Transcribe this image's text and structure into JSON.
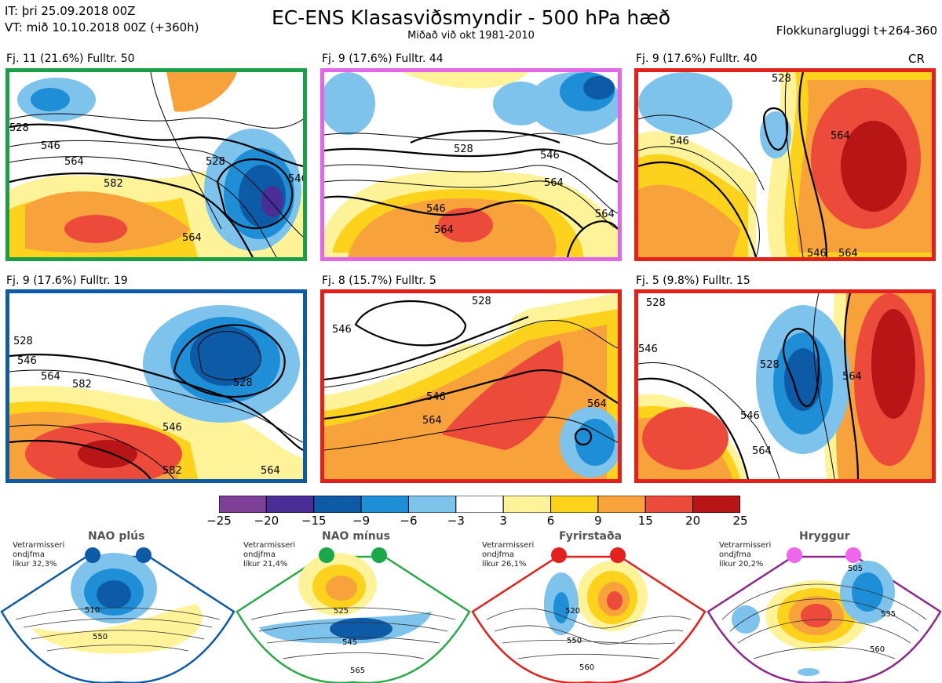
{
  "header": {
    "it_line": "IT: þri 25.09.2018 00Z",
    "vt_line": "VT: mið 10.10.2018 00Z  (+360h)",
    "title": "EC-ENS Klasasviðsmyndir - 500 hPa hæð",
    "subtitle": "Miðað við okt 1981-2010",
    "right": "Flokkunargluggi t+264-360"
  },
  "panels": [
    {
      "label": "Fj. 11 (21.6%)   Fulltr. 50",
      "border": "#1a9e48",
      "contours": [
        "528",
        "546",
        "564",
        "582",
        "528",
        "546",
        "564"
      ]
    },
    {
      "label": "Fj. 9 (17.6%)   Fulltr. 44",
      "border": "#e466e6",
      "contours": [
        "528",
        "546",
        "564",
        "564",
        "546",
        "564"
      ]
    },
    {
      "label": "Fj. 9 (17.6%)   Fulltr. 40",
      "border": "#e3201b",
      "contours": [
        "528",
        "546",
        "564",
        "546",
        "564"
      ],
      "tag": "CR"
    },
    {
      "label": "Fj. 9 (17.6%)   Fulltr. 19",
      "border": "#0d5ba6",
      "contours": [
        "528",
        "546",
        "564",
        "582",
        "528",
        "546",
        "564",
        "582"
      ]
    },
    {
      "label": "Fj. 8 (15.7%)   Fulltr. 5",
      "border": "#e3201b",
      "contours": [
        "528",
        "546",
        "546",
        "564",
        "564"
      ]
    },
    {
      "label": "Fj. 5 (9.8%)   Fulltr. 15",
      "border": "#e3201b",
      "contours": [
        "528",
        "546",
        "528",
        "546",
        "564",
        "564"
      ]
    }
  ],
  "colorbar": {
    "ticks": [
      "−25",
      "−20",
      "−15",
      "−9",
      "−6",
      "−3",
      "3",
      "6",
      "9",
      "15",
      "20",
      "25"
    ],
    "colors": [
      "#7d3f98",
      "#4b2d96",
      "#0d5ba6",
      "#1e8fd6",
      "#7ec3ec",
      "#ffffff",
      "#fff39a",
      "#fdd21c",
      "#f7a23a",
      "#ec4a3a",
      "#b81616"
    ]
  },
  "regimes": [
    {
      "title": "NAO plús",
      "note": [
        "Vetrarmisseri",
        "ondjfma",
        "líkur 32,3%"
      ],
      "dot_color": "#0d5ba6",
      "border": "#0d5ba6",
      "contours": [
        "510",
        "550"
      ]
    },
    {
      "title": "NAO mínus",
      "note": [
        "Vetrarmisseri",
        "ondjfma",
        "líkur 21,4%"
      ],
      "dot_color": "#1aa84a",
      "border": "#2fa84a",
      "contours": [
        "525",
        "545",
        "565"
      ]
    },
    {
      "title": "Fyrirstaða",
      "note": [
        "Vetrarmisseri",
        "ondjfma",
        "líkur 26,1%"
      ],
      "dot_color": "#e3201b",
      "border": "#e3201b",
      "contours": [
        "520",
        "550",
        "560"
      ]
    },
    {
      "title": "Hryggur",
      "note": [
        "Vetrarmisseri",
        "ondjfma",
        "líkur 20,2%"
      ],
      "dot_color": "#ee66ee",
      "border": "#8a2a8a",
      "contours": [
        "505",
        "535",
        "560"
      ]
    }
  ]
}
